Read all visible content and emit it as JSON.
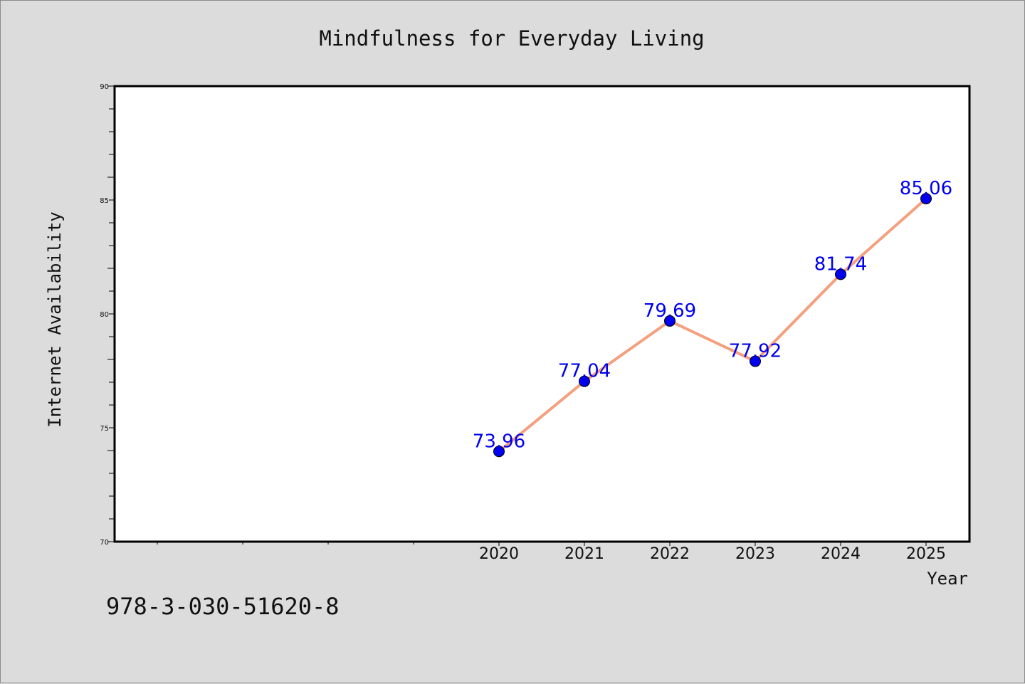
{
  "chart_data": {
    "type": "line",
    "title": "Mindfulness for Everyday Living",
    "xlabel": "Year",
    "ylabel": "Internet Availability",
    "x": [
      "2020",
      "2021",
      "2022",
      "2023",
      "2024",
      "2025"
    ],
    "series": [
      {
        "values": [
          73.96,
          77.04,
          79.69,
          77.92,
          81.74,
          85.06
        ]
      }
    ],
    "ylim": [
      70,
      90
    ],
    "yticks": [
      "70",
      "75",
      "80",
      "85",
      "90"
    ],
    "grid": false,
    "legend": "none",
    "line_color": "#f4a07e",
    "marker_color": "#0000ee",
    "label_color": "#0000ee",
    "background": "#dcdcdc",
    "plot_background": "#ffffff"
  },
  "footer_text": "978-3-030-51620-8"
}
